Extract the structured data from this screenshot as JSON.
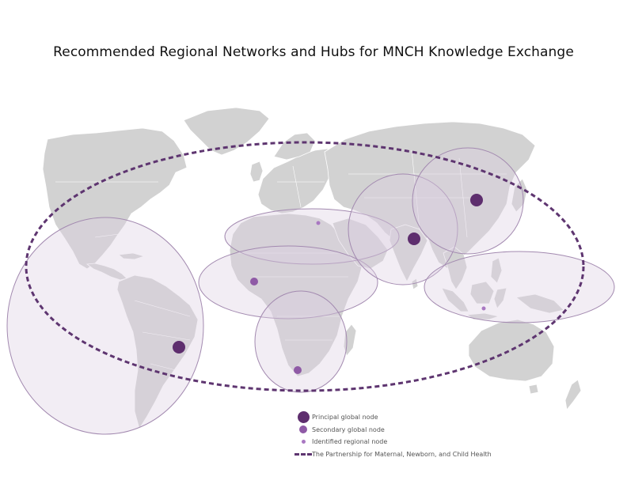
{
  "title": "Recommended Regional Networks and Hubs for MNCH Knowledge Exchange",
  "colors": {
    "principal": "#5e2e6e",
    "secondary": "#8f5aa6",
    "regional": "#a978c2",
    "region_fill": "#dccfe3",
    "route": "#5e3570",
    "land": "#d2d2d2"
  },
  "legend": {
    "principal": "Principal global node",
    "secondary": "Secondary global node",
    "regional": "Identified regional node",
    "partnership": "The Partnership for Maternal, Newborn, and Child Health"
  }
}
